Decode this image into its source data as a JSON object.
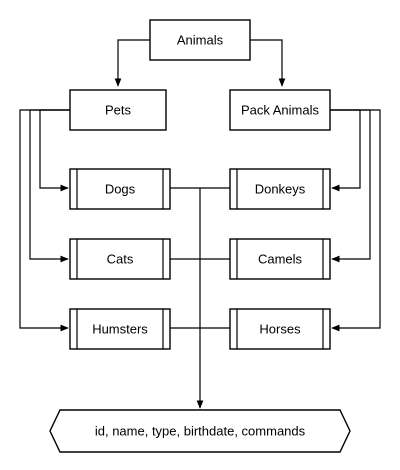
{
  "diagram": {
    "root": "Animals",
    "groups": {
      "pets": "Pets",
      "pack": "Pack Animals"
    },
    "pets": [
      "Dogs",
      "Cats",
      "Humsters"
    ],
    "pack_animals": [
      "Donkeys",
      "Camels",
      "Horses"
    ],
    "attributes": "id, name, type, birthdate, commands"
  }
}
